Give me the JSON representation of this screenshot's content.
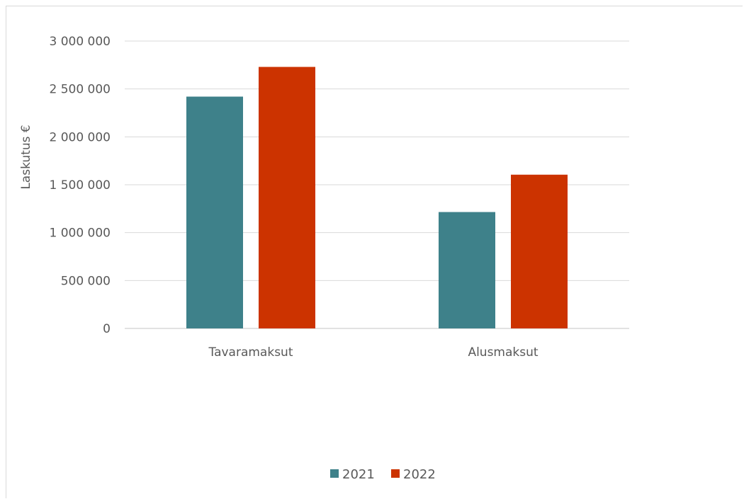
{
  "chart_data": {
    "type": "bar",
    "categories": [
      "Tavaramaksut",
      "Alusmaksut"
    ],
    "series": [
      {
        "name": "2021",
        "values": [
          2420000,
          1215000
        ],
        "color": "#3e818a"
      },
      {
        "name": "2022",
        "values": [
          2730000,
          1605000
        ],
        "color": "#cc3300"
      }
    ],
    "ylabel": "Laskutus €",
    "ylim": [
      0,
      3000000
    ],
    "yticks": [
      0,
      500000,
      1000000,
      1500000,
      2000000,
      2500000,
      3000000
    ],
    "ytick_labels": [
      "0",
      "500 000",
      "1 000 000",
      "1 500 000",
      "2 000 000",
      "2 500 000",
      "3 000 000"
    ],
    "grid": true,
    "legend_position": "bottom"
  }
}
